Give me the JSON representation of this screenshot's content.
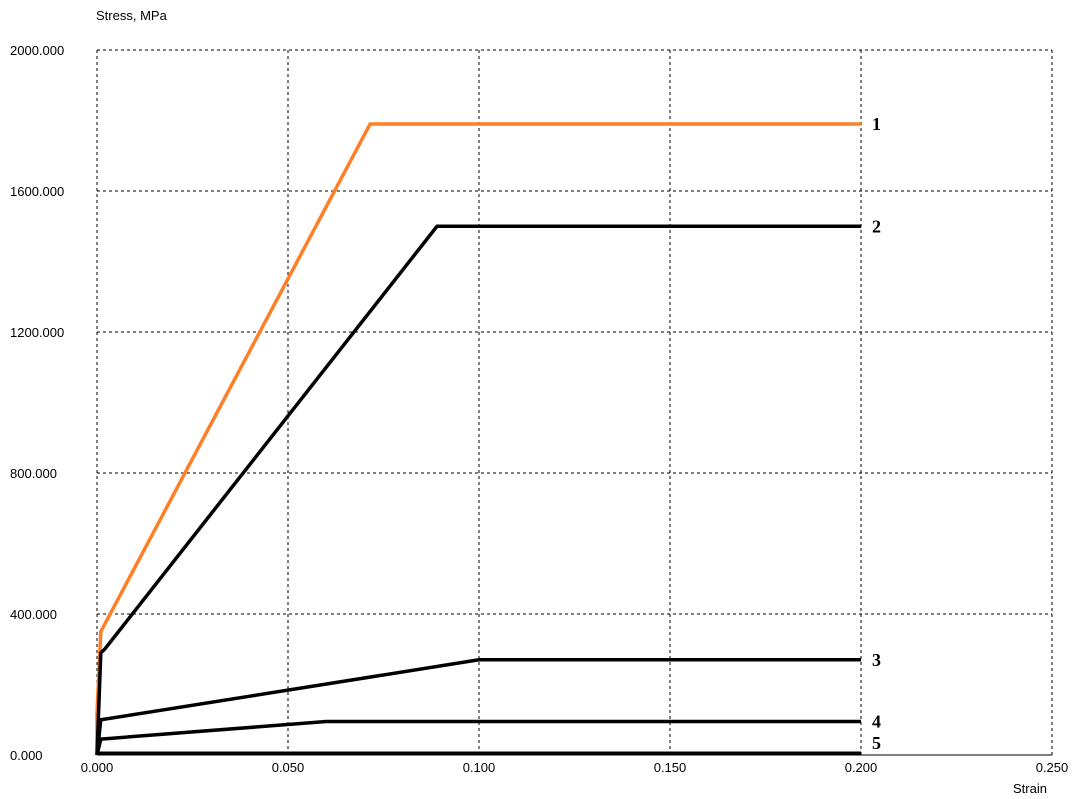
{
  "chart_data": {
    "type": "line",
    "ylabel": "Stress, MPa",
    "xlabel": "Strain",
    "xlim": [
      0,
      0.25
    ],
    "ylim": [
      0,
      2000
    ],
    "x_ticks": [
      "0.000",
      "0.050",
      "0.100",
      "0.150",
      "0.200",
      "0.250"
    ],
    "y_ticks": [
      "0.000",
      "400.000",
      "800.000",
      "1200.000",
      "1600.000",
      "2000.000"
    ],
    "grid": true,
    "series": [
      {
        "label": "1",
        "color": "#ff7f27",
        "x": [
          0.0,
          0.0,
          0.001,
          0.0715,
          0.2
        ],
        "y": [
          0,
          120,
          350,
          1790,
          1790
        ]
      },
      {
        "label": "2",
        "color": "#000000",
        "x": [
          0.0,
          0.001,
          0.002,
          0.089,
          0.2
        ],
        "y": [
          0,
          290,
          300,
          1500,
          1500
        ]
      },
      {
        "label": "3",
        "color": "#000000",
        "x": [
          0.0,
          0.001,
          0.1,
          0.2
        ],
        "y": [
          0,
          100,
          270,
          270
        ]
      },
      {
        "label": "4",
        "color": "#000000",
        "x": [
          0.0,
          0.001,
          0.06,
          0.2
        ],
        "y": [
          0,
          45,
          95,
          95
        ]
      },
      {
        "label": "5",
        "color": "#000000",
        "x": [
          0.0,
          0.2
        ],
        "y": [
          5,
          5
        ]
      }
    ]
  }
}
